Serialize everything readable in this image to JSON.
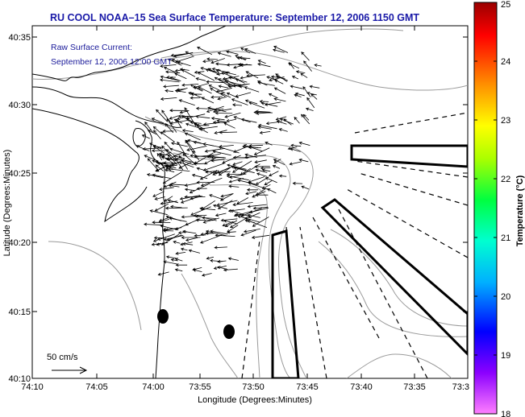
{
  "chart_data": {
    "type": "map",
    "title": "RU COOL  NOAA–15  Sea Surface Temperature:  September 12, 2006 1150 GMT",
    "annotation_lines": [
      "Raw Surface Current:",
      "September 12, 2006 12:00 GMT"
    ],
    "scale_label": "50 cm/s",
    "xlabel": "Longitude (Degrees:Minutes)",
    "ylabel": "Latitude (Degrees:Minutes)",
    "x_ticks": [
      "74:10",
      "74:05",
      "74:00",
      "73:55",
      "73:50",
      "73:45",
      "73:40",
      "73:35",
      "73:3"
    ],
    "y_ticks": [
      "40:10",
      "40:15",
      "40:20",
      "40:25",
      "40:30",
      "40:35"
    ],
    "colorbar": {
      "label": "Temperature (°C)",
      "ticks": [
        "18",
        "19",
        "20",
        "21",
        "22",
        "23",
        "24",
        "25"
      ],
      "range": [
        18,
        25
      ]
    },
    "grid": false,
    "colors": {
      "title": "#1a1aa8",
      "annotation": "#1a1a9a",
      "land": "#000000",
      "bathymetry": "#9a9a9a"
    }
  }
}
